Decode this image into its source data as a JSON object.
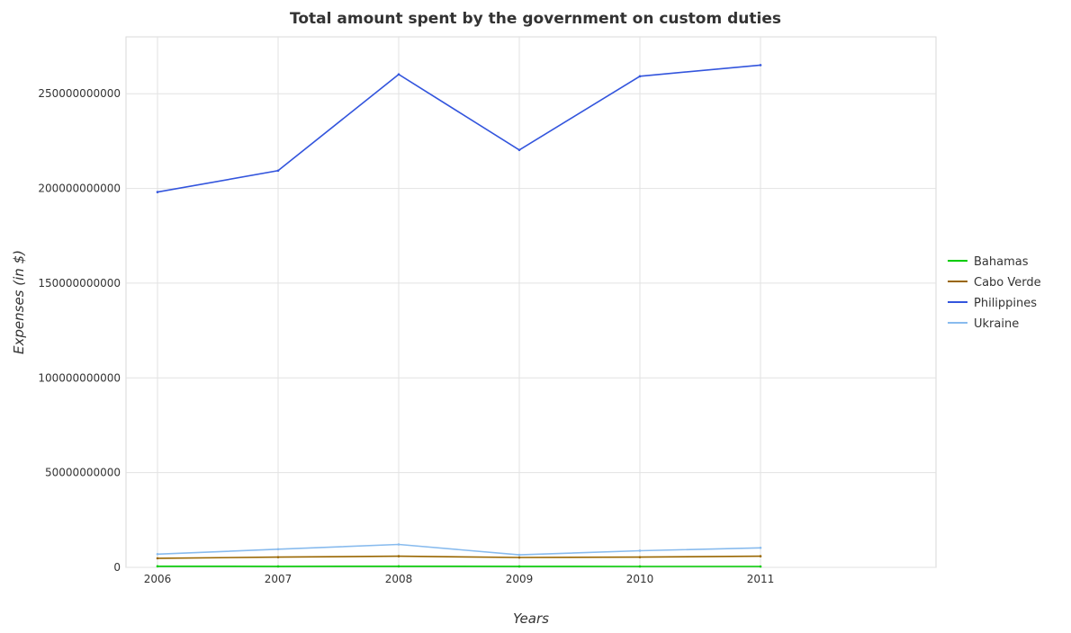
{
  "chart_data": {
    "type": "line",
    "title": "Total amount spent by the government on custom duties",
    "xlabel": "Years",
    "ylabel": "Expenses (in $)",
    "categories": [
      "2006",
      "2007",
      "2008",
      "2009",
      "2010",
      "2011"
    ],
    "ylim": [
      0,
      280000000000
    ],
    "yticks": [
      {
        "value": 0,
        "label": "0"
      },
      {
        "value": 50000000000,
        "label": "50000000000"
      },
      {
        "value": 100000000000,
        "label": "100000000000"
      },
      {
        "value": 150000000000,
        "label": "150000000000"
      },
      {
        "value": 200000000000,
        "label": "200000000000"
      },
      {
        "value": 250000000000,
        "label": "250000000000"
      }
    ],
    "grid": true,
    "legend_position": "right",
    "series": [
      {
        "name": "Bahamas",
        "color": "#00cc00",
        "values": [
          590000000,
          520000000,
          570000000,
          500000000,
          490000000,
          460000000
        ]
      },
      {
        "name": "Cabo Verde",
        "color": "#996600",
        "values": [
          4800000000,
          5400000000,
          5900000000,
          5200000000,
          5400000000,
          5900000000
        ]
      },
      {
        "name": "Philippines",
        "color": "#3355dd",
        "values": [
          198100000000,
          209400000000,
          260200000000,
          220300000000,
          259200000000,
          265100000000
        ]
      },
      {
        "name": "Ukraine",
        "color": "#88bbee",
        "values": [
          7000000000,
          9600000000,
          12100000000,
          6600000000,
          8800000000,
          10300000000
        ]
      }
    ]
  }
}
